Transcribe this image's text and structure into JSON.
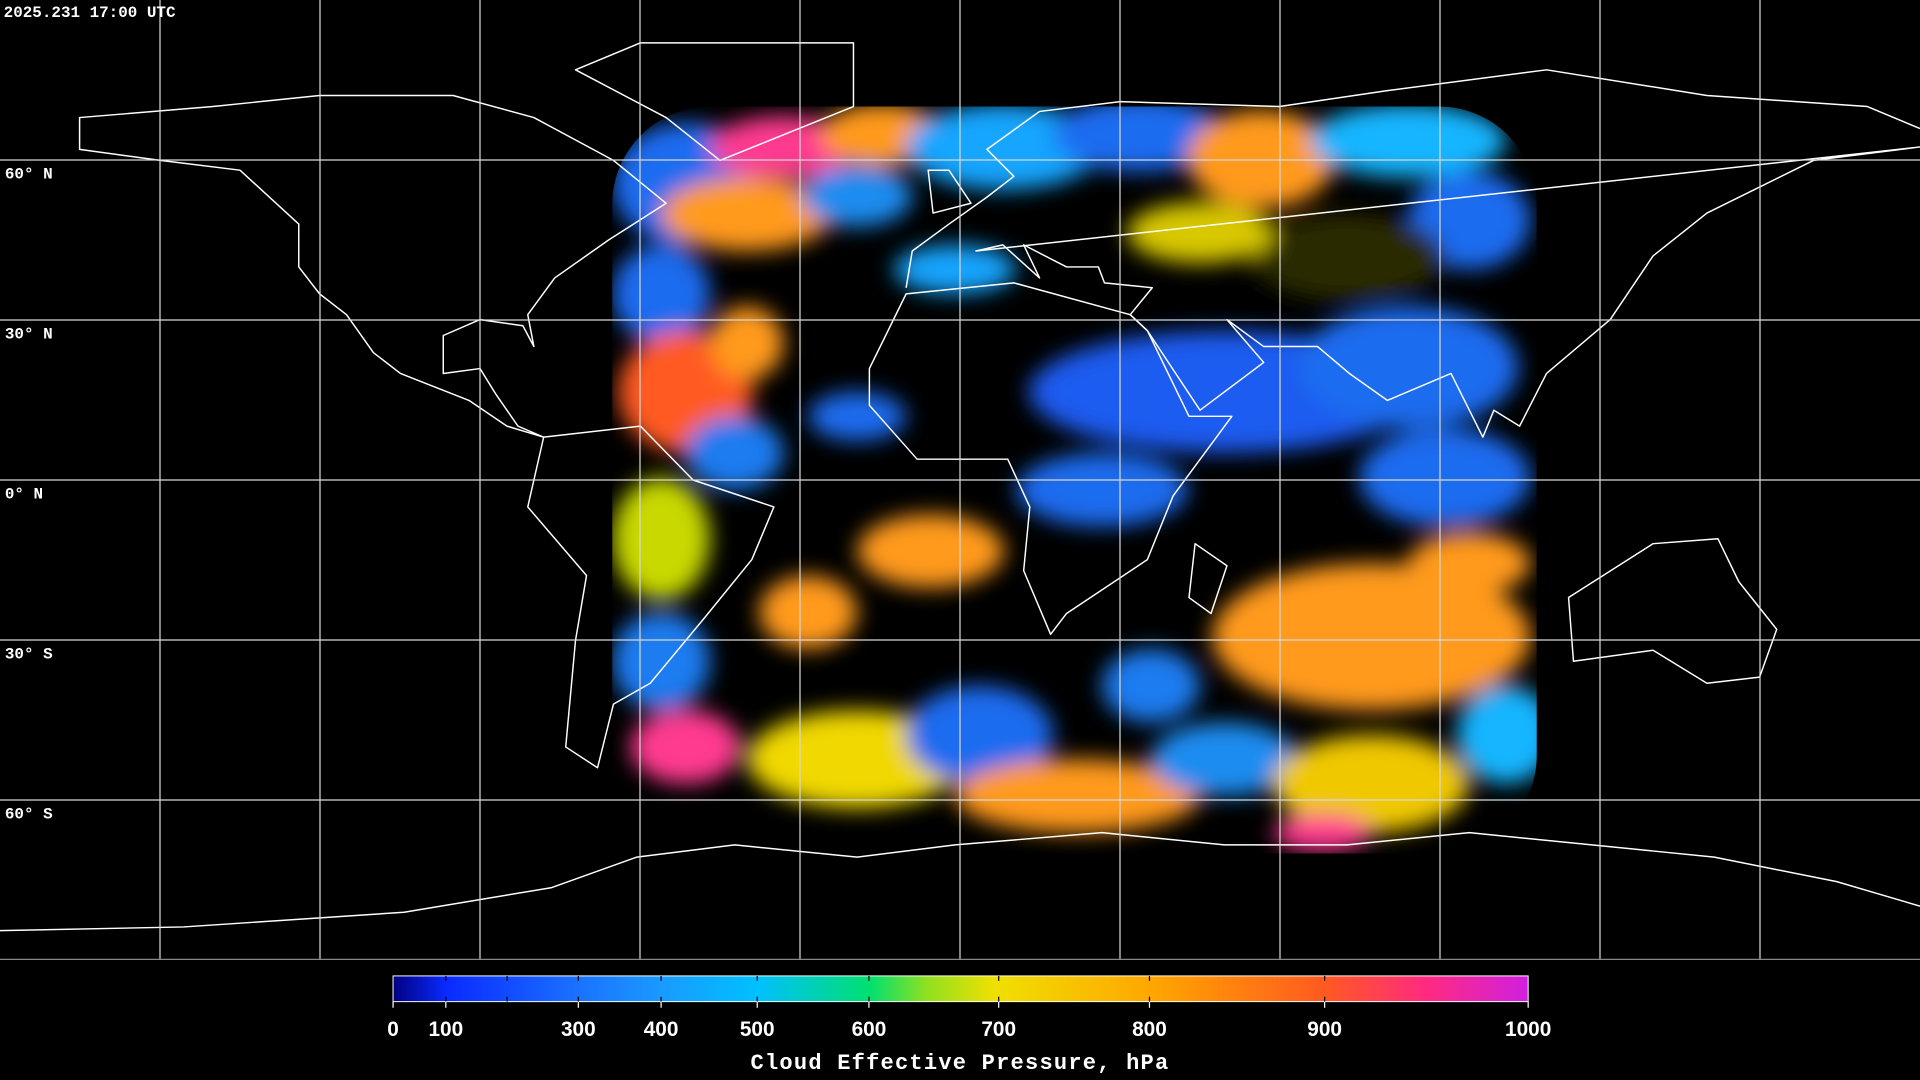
{
  "header": {
    "timestamp": "2025.231 17:00 UTC"
  },
  "grid": {
    "latitudes": [
      {
        "value": 60,
        "label": "60° N"
      },
      {
        "value": 30,
        "label": "30° N"
      },
      {
        "value": 0,
        "label": "0° N"
      },
      {
        "value": -30,
        "label": "30° S"
      },
      {
        "value": -60,
        "label": "60° S"
      }
    ]
  },
  "colorbar": {
    "title": "Cloud Effective Pressure, hPa",
    "lim": [
      0,
      1000
    ],
    "ticks": [
      0,
      100,
      300,
      400,
      500,
      600,
      700,
      800,
      900,
      1000
    ],
    "scale": "exponential"
  }
}
